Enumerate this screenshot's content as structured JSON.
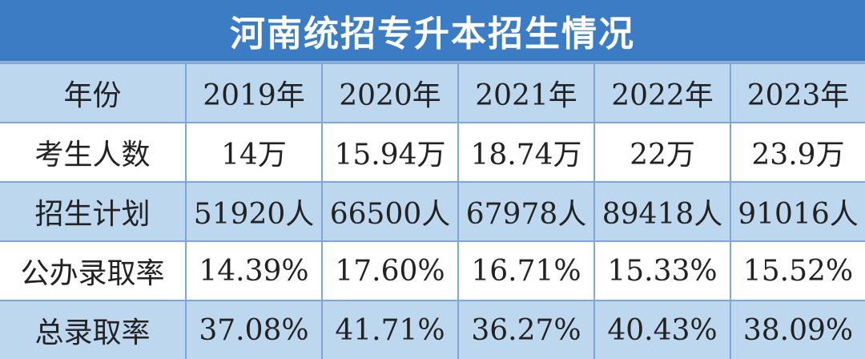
{
  "header": {
    "title": "河南统招专升本招生情况"
  },
  "table": {
    "header": [
      "年份",
      "2019年",
      "2020年",
      "2021年",
      "2022年",
      "2023年"
    ],
    "rows": [
      [
        "考生人数",
        "14万",
        "15.94万",
        "18.74万",
        "22万",
        "23.9万"
      ],
      [
        "招生计划",
        "51920人",
        "66500人",
        "67978人",
        "89418人",
        "91016人"
      ],
      [
        "公办录取率",
        "14.39%",
        "17.60%",
        "16.71%",
        "15.33%",
        "15.52%"
      ],
      [
        "总录取率",
        "37.08%",
        "41.71%",
        "36.27%",
        "40.43%",
        "38.09%"
      ]
    ]
  }
}
